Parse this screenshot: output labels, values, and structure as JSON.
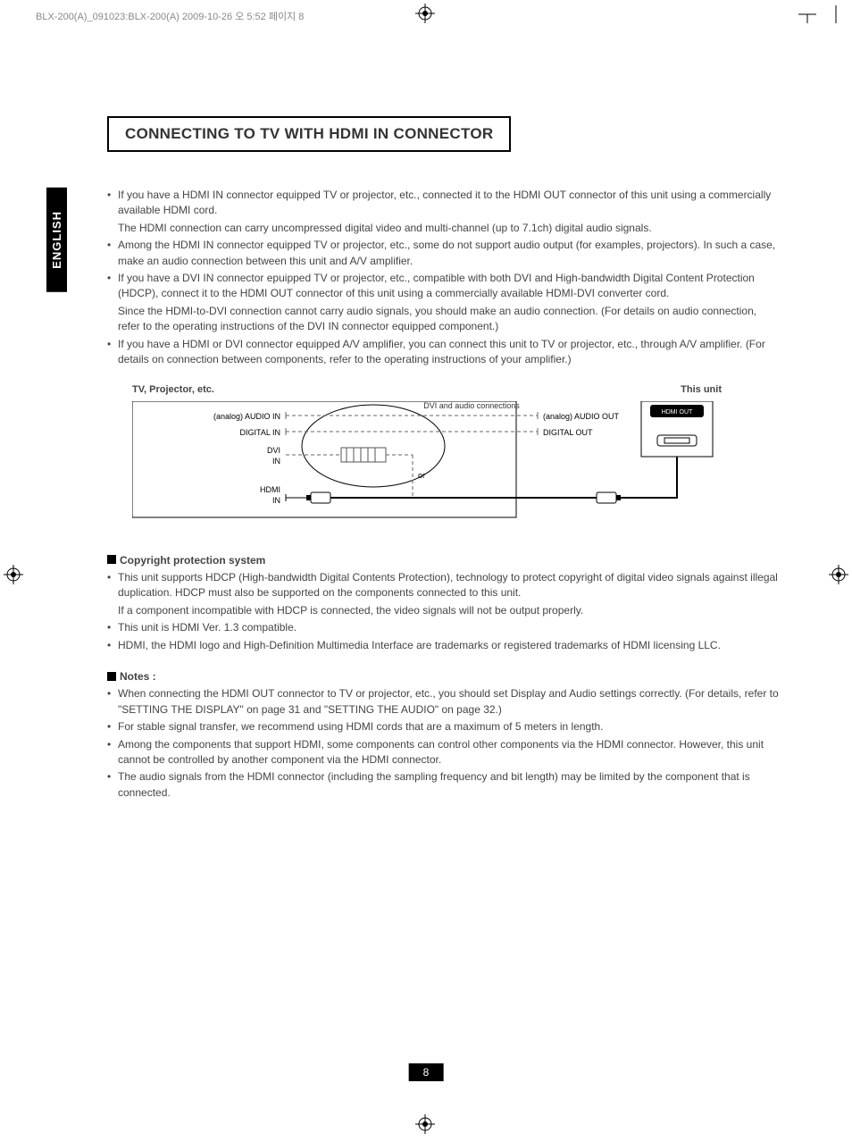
{
  "header": "BLX-200(A)_091023:BLX-200(A)  2009-10-26  오    5:52  페이지 8",
  "langTab": "ENGLISH",
  "title": "CONNECTING TO TV WITH HDMI IN CONNECTOR",
  "intro": [
    "If you have a HDMI IN connector equipped TV or projector, etc., connected it to the HDMI OUT connector of this unit using a commercially available HDMI cord.",
    "The HDMI connection can carry uncompressed digital video and multi-channel (up to 7.1ch) digital audio signals.",
    "Among the HDMI IN connector equipped TV or projector, etc., some do not support audio output (for examples, projectors). In such a case, make an audio connection between this unit and A/V amplifier.",
    "If you have a DVI IN connector epuipped TV or projector, etc., compatible with both DVI and High-bandwidth Digital Content Protection (HDCP), connect it to the HDMI OUT connector of this unit using a commercially available HDMI-DVI converter cord.",
    "Since the HDMI-to-DVI connection cannot carry audio signals, you should make an audio connection. (For details on audio connection, refer to the operating instructions of the DVI IN connector equipped component.)",
    "If you have a HDMI or DVI connector equipped A/V amplifier, you can connect this unit to TV or projector, etc., through A/V amplifier. (For details on connection between components, refer to the operating instructions of your amplifier.)"
  ],
  "introBulleted": [
    true,
    false,
    true,
    true,
    false,
    true
  ],
  "diagram": {
    "leftTitle": "TV, Projector, etc.",
    "rightTitle": "This unit",
    "centerTop": "DVI and audio connections",
    "orLabel": "or",
    "leftPorts": [
      "(analog) AUDIO IN",
      "DIGITAL IN",
      "DVI IN",
      "HDMI IN"
    ],
    "rightPorts": [
      "(analog) AUDIO OUT",
      "DIGITAL OUT"
    ],
    "hdmiBadge": "HDMI OUT",
    "colors": {
      "border": "#000000",
      "dashed": "#666666",
      "text": "#333333",
      "badgeBg": "#000000",
      "badgeFg": "#ffffff"
    }
  },
  "copyright": {
    "heading": "Copyright protection system",
    "items": [
      "This unit supports HDCP (High-bandwidth Digital Contents Protection), technology to protect copyright of digital video signals against illegal duplication. HDCP must also be supported on the components connected to this unit.",
      "If a component incompatible with HDCP is connected, the video signals will not be output properly.",
      "This unit is HDMI Ver. 1.3 compatible.",
      "HDMI, the HDMI logo and High-Definition Multimedia Interface are trademarks or registered trademarks of HDMI licensing LLC."
    ],
    "bulleted": [
      true,
      false,
      true,
      true
    ]
  },
  "notes": {
    "heading": "Notes :",
    "items": [
      "When connecting the HDMI OUT connector to TV or projector, etc., you should set Display and Audio settings correctly. (For details, refer to \"SETTING THE DISPLAY\" on page 31 and \"SETTING THE AUDIO\" on page 32.)",
      "For stable signal transfer, we recommend using HDMI cords that are a maximum of 5 meters in length.",
      "Among the components that support HDMI, some components can control other components via the HDMI connector. However, this unit cannot be controlled by another component via the HDMI connector.",
      "The audio signals from the HDMI connector (including the sampling frequency and bit length) may be limited by the component that is connected."
    ]
  },
  "pageNumber": "8"
}
